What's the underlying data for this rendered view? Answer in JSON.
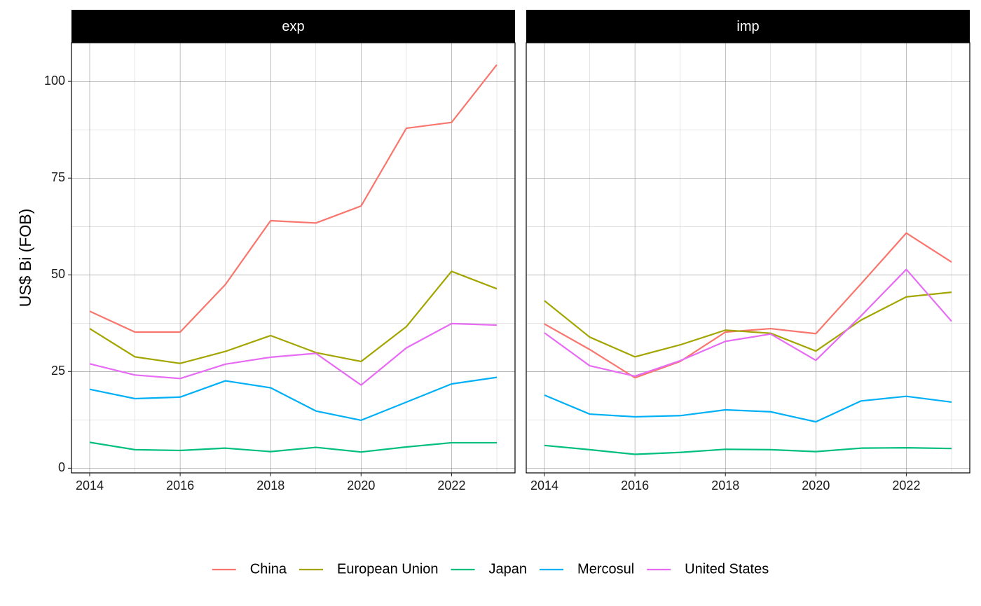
{
  "chart_data": {
    "type": "line",
    "ylabel": "US$ Bi (FOB)",
    "xlabel": "",
    "x": [
      2014,
      2015,
      2016,
      2017,
      2018,
      2019,
      2020,
      2021,
      2022,
      2023
    ],
    "x_ticks": [
      2014,
      2016,
      2018,
      2020,
      2022
    ],
    "ylim": [
      -1.2,
      110
    ],
    "y_ticks": [
      0,
      25,
      50,
      75,
      100
    ],
    "y_tick_labels": [
      "0",
      "25",
      "50",
      "75",
      "100"
    ],
    "grid": true,
    "legend_position": "bottom",
    "panels": [
      {
        "label": "exp",
        "series": [
          {
            "name": "China",
            "color": "#F8766D",
            "values": [
              40.6,
              35.2,
              35.2,
              47.5,
              64.0,
              63.4,
              67.8,
              87.9,
              89.4,
              104.3
            ]
          },
          {
            "name": "European Union",
            "color": "#A3A500",
            "values": [
              36.1,
              28.8,
              27.1,
              30.2,
              34.3,
              29.9,
              27.6,
              36.6,
              50.9,
              46.4
            ]
          },
          {
            "name": "Japan",
            "color": "#00BF7D",
            "values": [
              6.7,
              4.8,
              4.6,
              5.2,
              4.3,
              5.4,
              4.2,
              5.5,
              6.6,
              6.6
            ]
          },
          {
            "name": "Mercosul",
            "color": "#00B0F6",
            "values": [
              20.4,
              18.0,
              18.4,
              22.6,
              20.8,
              14.8,
              12.4,
              17.1,
              21.8,
              23.5
            ]
          },
          {
            "name": "United States",
            "color": "#E76BF3",
            "values": [
              27.0,
              24.1,
              23.2,
              26.9,
              28.7,
              29.7,
              21.5,
              31.1,
              37.4,
              37.0
            ]
          }
        ]
      },
      {
        "label": "imp",
        "series": [
          {
            "name": "China",
            "color": "#F8766D",
            "values": [
              37.3,
              30.7,
              23.4,
              27.6,
              35.2,
              36.1,
              34.8,
              47.7,
              60.8,
              53.3
            ]
          },
          {
            "name": "European Union",
            "color": "#A3A500",
            "values": [
              43.3,
              33.9,
              28.8,
              31.9,
              35.7,
              34.9,
              30.3,
              38.3,
              44.3,
              45.5
            ]
          },
          {
            "name": "Japan",
            "color": "#00BF7D",
            "values": [
              5.9,
              4.8,
              3.6,
              4.1,
              4.9,
              4.8,
              4.3,
              5.2,
              5.3,
              5.1
            ]
          },
          {
            "name": "Mercosul",
            "color": "#00B0F6",
            "values": [
              18.9,
              14.0,
              13.3,
              13.6,
              15.1,
              14.6,
              12.0,
              17.4,
              18.6,
              17.1
            ]
          },
          {
            "name": "United States",
            "color": "#E76BF3",
            "values": [
              35.0,
              26.5,
              23.8,
              27.8,
              32.8,
              34.7,
              27.9,
              39.4,
              51.4,
              38.0
            ]
          }
        ]
      }
    ],
    "legend": [
      "China",
      "European Union",
      "Japan",
      "Mercosul",
      "United States"
    ]
  }
}
